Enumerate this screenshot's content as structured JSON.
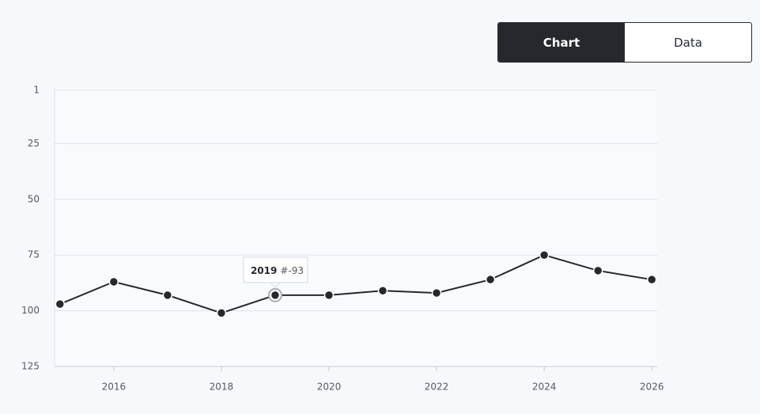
{
  "toggle": {
    "options": [
      "Chart",
      "Data"
    ],
    "active_index": 0
  },
  "chart_data": {
    "type": "line",
    "x": [
      2015,
      2016,
      2017,
      2018,
      2019,
      2020,
      2021,
      2022,
      2023,
      2024,
      2025,
      2026
    ],
    "series": [
      {
        "color": "#25292e",
        "values": [
          97,
          87,
          93,
          101,
          93,
          93,
          91,
          92,
          86,
          75,
          82,
          86
        ]
      }
    ],
    "xlim": [
      2014.9,
      2026.1
    ],
    "xticks": [
      2016,
      2018,
      2020,
      2022,
      2024,
      2026
    ],
    "ylim": [
      0,
      125
    ],
    "yticks": [
      1,
      25,
      50,
      75,
      100,
      125
    ],
    "y_reversed": true,
    "grid": true,
    "tooltip": {
      "title": "2019",
      "text": "#-93"
    }
  }
}
